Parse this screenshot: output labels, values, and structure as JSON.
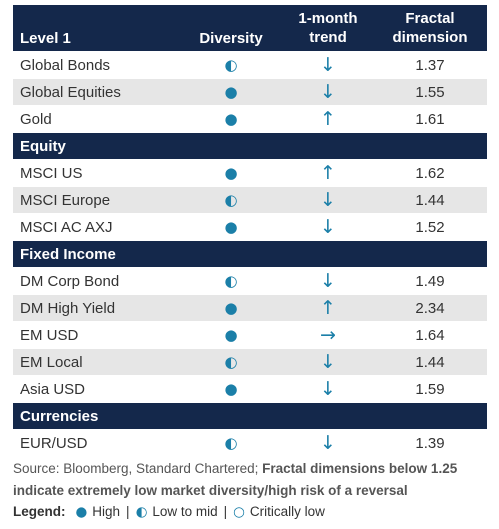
{
  "header": {
    "columns": [
      "Level 1",
      "Diversity",
      "1-month trend",
      "Fractal dimension"
    ]
  },
  "rows": [
    {
      "name": "Global Bonds",
      "diversity": "◐",
      "trend": "↓",
      "fractal": 1.37
    },
    {
      "name": "Global Equities",
      "diversity": "●",
      "trend": "↓",
      "fractal": 1.55
    },
    {
      "name": "Gold",
      "diversity": "●",
      "trend": "↑",
      "fractal": 1.61
    },
    {
      "section": "Equity"
    },
    {
      "name": "MSCI US",
      "diversity": "●",
      "trend": "↑",
      "fractal": 1.62
    },
    {
      "name": "MSCI Europe",
      "diversity": "◐",
      "trend": "↓",
      "fractal": 1.44
    },
    {
      "name": "MSCI AC AXJ",
      "diversity": "●",
      "trend": "↓",
      "fractal": 1.52
    },
    {
      "section": "Fixed Income"
    },
    {
      "name": "DM Corp Bond",
      "diversity": "◐",
      "trend": "↓",
      "fractal": 1.49
    },
    {
      "name": "DM High Yield",
      "diversity": "●",
      "trend": "↑",
      "fractal": 2.34
    },
    {
      "name": "EM USD",
      "diversity": "●",
      "trend": "→",
      "fractal": 1.64
    },
    {
      "name": "EM Local",
      "diversity": "◐",
      "trend": "↓",
      "fractal": 1.44
    },
    {
      "name": "Asia USD",
      "diversity": "●",
      "trend": "↓",
      "fractal": 1.59
    },
    {
      "section": "Currencies"
    },
    {
      "name": "EUR/USD",
      "diversity": "◐",
      "trend": "↓",
      "fractal": 1.39
    }
  ],
  "source": {
    "text": "Source: Bloomberg, Standard Chartered; ",
    "bold": "Fractal dimensions below 1.25 indicate extremely low market diversity/high risk of a reversal"
  },
  "legend": {
    "title": "Legend:",
    "items": [
      {
        "symbol": "●",
        "label": "High"
      },
      {
        "symbol": "◐",
        "label": "Low to mid"
      },
      {
        "symbol": "○",
        "label": "Critically low"
      }
    ]
  }
}
